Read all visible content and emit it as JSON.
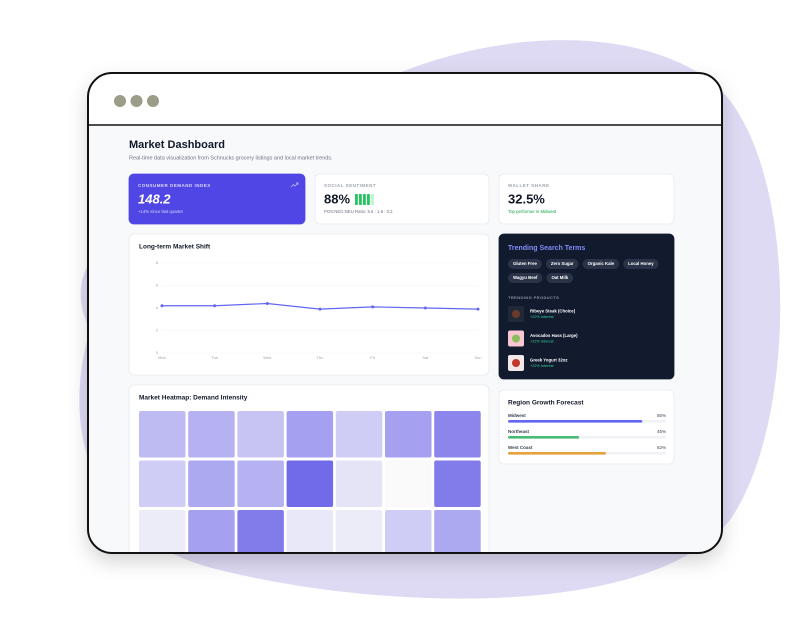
{
  "header": {
    "title": "Market Dashboard",
    "subtitle": "Real-time data visualization from Schnucks grocery listings and local market trends."
  },
  "kpis": [
    {
      "label": "CONSUMER DEMAND INDEX",
      "value": "148.2",
      "note": "+14% since last quarter"
    },
    {
      "label": "SOCIAL SENTIMENT",
      "value": "88%",
      "note": "POS:NEG:NEU Ratio: 5.6 : 1.8 : 0.2"
    },
    {
      "label": "WALLET SHARE",
      "value": "32.5%",
      "note": "Top performer in Midwest"
    }
  ],
  "line_chart": {
    "type": "line",
    "title": "Long-term Market Shift",
    "categories": [
      "Mon",
      "Tue",
      "Wed",
      "Thu",
      "Fri",
      "Sat",
      "Sun"
    ],
    "values": [
      4.2,
      4.2,
      4.4,
      3.9,
      4.1,
      4.0,
      3.9
    ],
    "color": "#6366f1",
    "ylim": [
      0,
      8
    ],
    "yticks": [
      0,
      2,
      4,
      6,
      8
    ],
    "grid": true
  },
  "trending": {
    "title": "Trending Search Terms",
    "tags": [
      "Gluten Free",
      "Zero Sugar",
      "Organic Kale",
      "Local Honey",
      "Wagyu Beef",
      "Oat Milk"
    ],
    "products_title": "TRENDING PRODUCTS",
    "products": [
      {
        "name": "Ribeye Steak (Choice)",
        "change": "+22% Interest"
      },
      {
        "name": "Avocados Hass (Large)",
        "change": "+22% Interest"
      },
      {
        "name": "Greek Yogurt 32oz",
        "change": "+22% Interest"
      }
    ]
  },
  "heatmap": {
    "title": "Market Heatmap: Demand Intensity",
    "color": "#4f46e5",
    "values": [
      [
        35,
        40,
        30,
        50,
        25,
        50,
        65
      ],
      [
        25,
        45,
        40,
        80,
        12,
        0,
        70
      ],
      [
        8,
        50,
        70,
        10,
        8,
        25,
        45
      ]
    ]
  },
  "forecast": {
    "title": "Region Growth Forecast",
    "regions": [
      {
        "name": "Midwest",
        "value": 85,
        "label": "85%",
        "color": "#6366f1"
      },
      {
        "name": "Northeast",
        "value": 45,
        "label": "45%",
        "color": "#48bb78"
      },
      {
        "name": "West Coast",
        "value": 62,
        "label": "62%",
        "color": "#e6a23c"
      }
    ]
  }
}
